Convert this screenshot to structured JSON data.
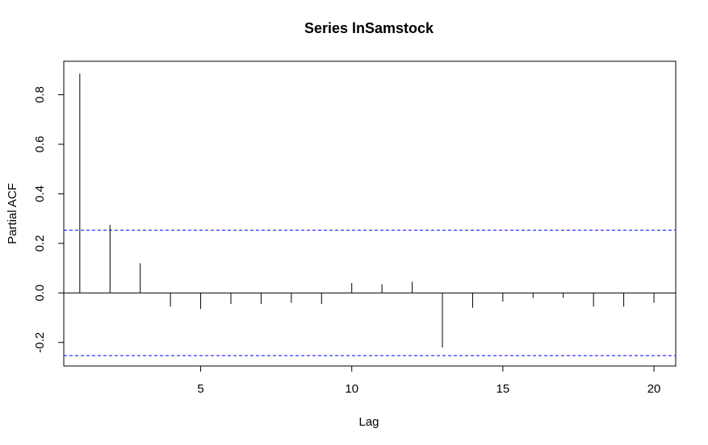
{
  "chart_data": {
    "type": "bar",
    "title": "Series  lnSamstock",
    "xlabel": "Lag",
    "ylabel": "Partial ACF",
    "xlim": [
      0.47,
      20.72
    ],
    "ylim": [
      -0.295,
      0.935
    ],
    "x_ticks": [
      5,
      10,
      15,
      20
    ],
    "y_ticks": [
      -0.2,
      0.0,
      0.2,
      0.4,
      0.6,
      0.8
    ],
    "y_tick_labels": [
      "-0.2",
      "0.0",
      "0.2",
      "0.4",
      "0.6",
      "0.8"
    ],
    "lags": [
      1,
      2,
      3,
      4,
      5,
      6,
      7,
      8,
      9,
      10,
      11,
      12,
      13,
      14,
      15,
      16,
      17,
      18,
      19,
      20
    ],
    "values": [
      0.885,
      0.275,
      0.12,
      -0.055,
      -0.065,
      -0.045,
      -0.045,
      -0.04,
      -0.045,
      0.04,
      0.035,
      0.045,
      -0.22,
      -0.06,
      -0.035,
      -0.02,
      -0.02,
      -0.055,
      -0.055,
      -0.04
    ],
    "confidence_bound": 0.253,
    "zero_line": 0,
    "grid": false,
    "colors": {
      "bars": "#000000",
      "confidence": "#0000ff",
      "axis": "#000000"
    }
  }
}
